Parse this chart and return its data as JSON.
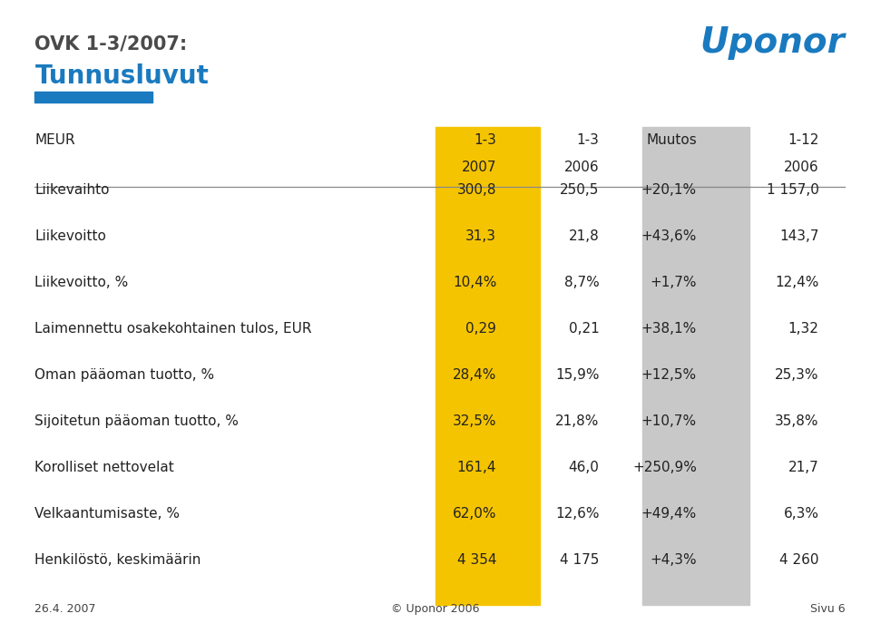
{
  "title_line1": "OVK 1-3/2007:",
  "title_line2": "Tunnusluvut",
  "title_color1": "#4a4a4a",
  "title_color2": "#1a7abf",
  "uponor_text": "Uponor",
  "uponor_color": "#1a7abf",
  "accent_bar_color": "#1a7abf",
  "col_header_row1": [
    "1-3",
    "1-3",
    "Muutos",
    "1-12"
  ],
  "col_header_row2": [
    "2007",
    "2006",
    "",
    "2006"
  ],
  "yellow_col_color": "#F5C400",
  "gray_col_color": "#C8C8C8",
  "meur_label": "MEUR",
  "rows": [
    {
      "label": "Liikevaihto",
      "v1": "300,8",
      "v2": "250,5",
      "v3": "+20,1%",
      "v4": "1 157,0"
    },
    {
      "label": "Liikevoitto",
      "v1": "31,3",
      "v2": "21,8",
      "v3": "+43,6%",
      "v4": "143,7"
    },
    {
      "label": "Liikevoitto, %",
      "v1": "10,4%",
      "v2": "8,7%",
      "v3": "+1,7%",
      "v4": "12,4%"
    },
    {
      "label": "Laimennettu osakekohtainen tulos, EUR",
      "v1": "0,29",
      "v2": "0,21",
      "v3": "+38,1%",
      "v4": "1,32"
    },
    {
      "label": "Oman pääoman tuotto, %",
      "v1": "28,4%",
      "v2": "15,9%",
      "v3": "+12,5%",
      "v4": "25,3%"
    },
    {
      "label": "Sijoitetun pääoman tuotto, %",
      "v1": "32,5%",
      "v2": "21,8%",
      "v3": "+10,7%",
      "v4": "35,8%"
    },
    {
      "label": "Korolliset nettovelat",
      "v1": "161,4",
      "v2": "46,0",
      "v3": "+250,9%",
      "v4": "21,7"
    },
    {
      "label": "Velkaantumisaste, %",
      "v1": "62,0%",
      "v2": "12,6%",
      "v3": "+49,4%",
      "v4": "6,3%"
    },
    {
      "label": "Henkilöstö, keskimäärin",
      "v1": "4 354",
      "v2": "4 175",
      "v3": "+4,3%",
      "v4": "4 260"
    }
  ],
  "footer_left": "26.4. 2007",
  "footer_center": "© Uponor 2006",
  "footer_right": "Sivu 6",
  "bg_color": "#FFFFFF"
}
